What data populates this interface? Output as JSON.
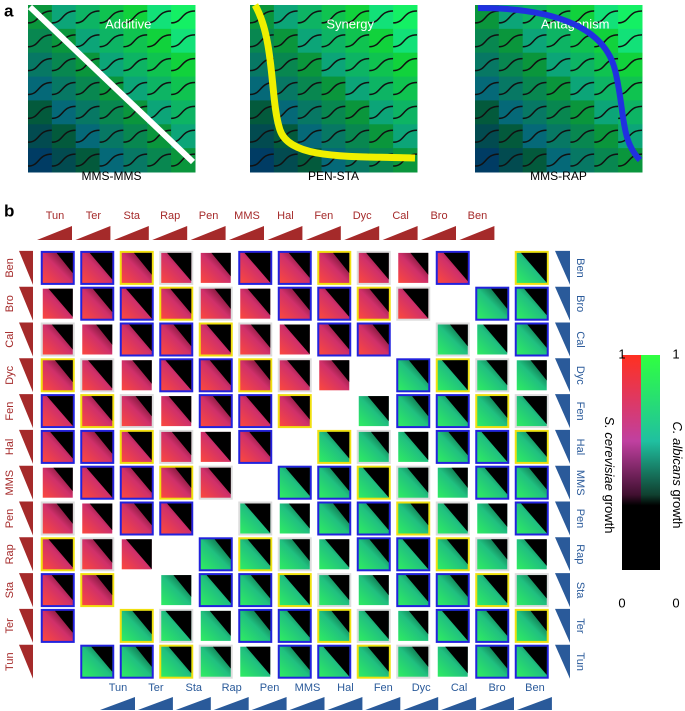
{
  "panel_a": {
    "label": "a",
    "examples": [
      {
        "title": "Additive",
        "caption": "MMS-MMS"
      },
      {
        "title": "Synergy",
        "caption": "PEN-STA"
      },
      {
        "title": "Antagonism",
        "caption": "MMS-RAP"
      }
    ]
  },
  "panel_b": {
    "label": "b",
    "top_labels": [
      "Tun",
      "Ter",
      "Sta",
      "Rap",
      "Pen",
      "MMS",
      "Hal",
      "Fen",
      "Dyc",
      "Cal",
      "Bro",
      "Ben"
    ],
    "bottom_labels": [
      "Tun",
      "Ter",
      "Sta",
      "Rap",
      "Pen",
      "MMS",
      "Hal",
      "Fen",
      "Dyc",
      "Cal",
      "Bro",
      "Ben"
    ],
    "left_labels": [
      "Ben",
      "Bro",
      "Cal",
      "Dyc",
      "Fen",
      "Hal",
      "MMS",
      "Pen",
      "Rap",
      "Sta",
      "Ter",
      "Tun"
    ],
    "right_labels": [
      "Ben",
      "Bro",
      "Cal",
      "Dyc",
      "Fen",
      "Hal",
      "MMS",
      "Pen",
      "Rap",
      "Sta",
      "Ter",
      "Tun"
    ],
    "colorbar": {
      "left_title": {
        "species": "S. cerevisiae",
        "word": "growth"
      },
      "right_title": {
        "species": "C. albicans",
        "word": "growth"
      },
      "left_ticks": [
        "1",
        "0"
      ],
      "right_ticks": [
        "1",
        "0"
      ]
    }
  }
}
